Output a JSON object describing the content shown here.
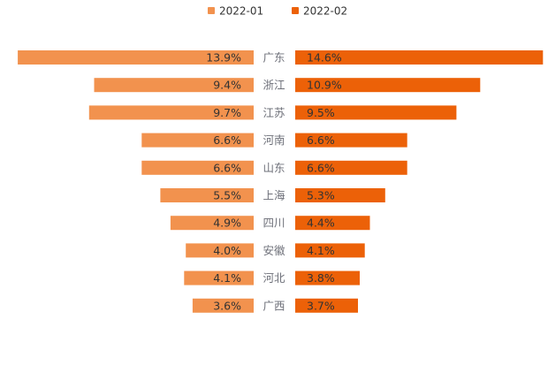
{
  "chart_data": {
    "type": "bar",
    "orientation": "horizontal-butterfly",
    "categories": [
      "广东",
      "浙江",
      "江苏",
      "河南",
      "山东",
      "上海",
      "四川",
      "安徽",
      "河北",
      "广西"
    ],
    "series": [
      {
        "name": "2022-01",
        "color": "#f2924e",
        "values": [
          13.9,
          9.4,
          9.7,
          6.6,
          6.6,
          5.5,
          4.9,
          4.0,
          4.1,
          3.6
        ],
        "labels": [
          "13.9%",
          "9.4%",
          "9.7%",
          "6.6%",
          "6.6%",
          "5.5%",
          "4.9%",
          "4.0%",
          "4.1%",
          "3.6%"
        ]
      },
      {
        "name": "2022-02",
        "color": "#ec6108",
        "values": [
          14.6,
          10.9,
          9.5,
          6.6,
          6.6,
          5.3,
          4.4,
          4.1,
          3.8,
          3.7
        ],
        "labels": [
          "14.6%",
          "10.9%",
          "9.5%",
          "6.6%",
          "6.6%",
          "5.3%",
          "4.4%",
          "4.1%",
          "3.8%",
          "3.7%"
        ]
      }
    ],
    "legend": "top-center",
    "unit": "%"
  }
}
